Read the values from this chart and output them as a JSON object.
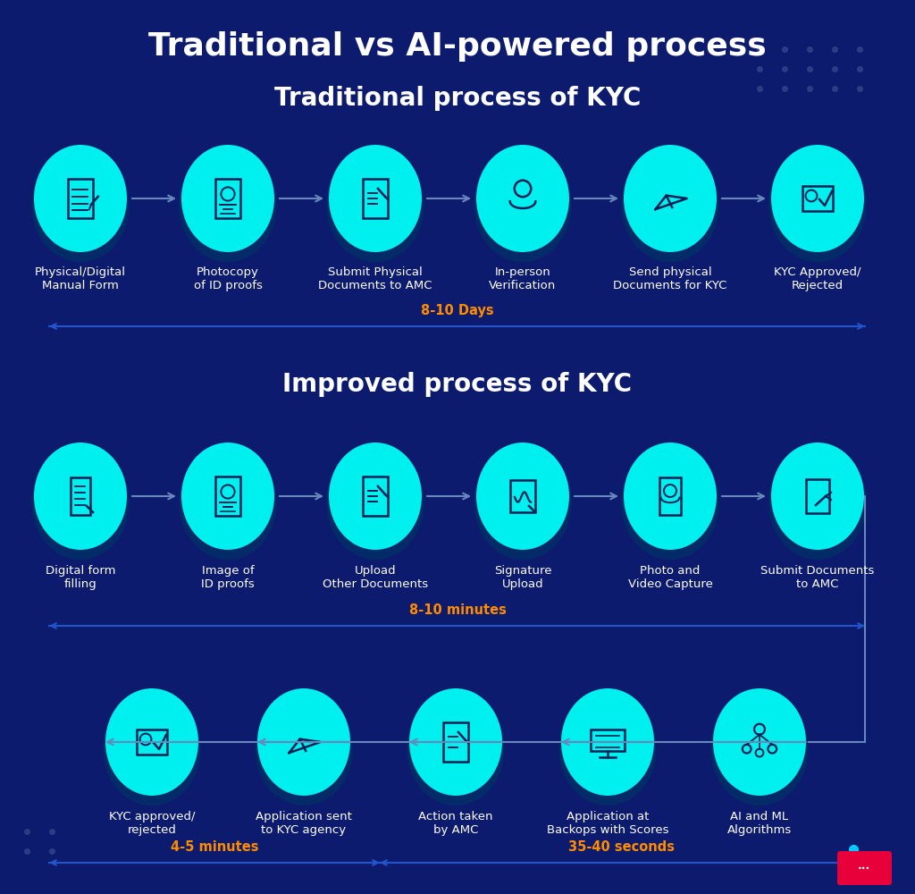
{
  "bg_color": "#0d1b6e",
  "title": "Traditional vs AI-powered process",
  "title_color": "#ffffff",
  "title_fontsize": 26,
  "section1_title": "Traditional process of KYC",
  "section2_title": "Improved process of KYC",
  "section_title_color": "#ffffff",
  "section_title_fontsize": 20,
  "circle_color": "#00f0f0",
  "circle_glow_color": "#007799",
  "arrow_color": "#6688bb",
  "label_color": "#ffffff",
  "label_fontsize": 9.5,
  "time_color": "#ff8c00",
  "time_line_color": "#2255cc",
  "dot_color": "#334488",
  "trad_steps": [
    "Physical/Digital\nManual Form",
    "Photocopy\nof ID proofs",
    "Submit Physical\nDocuments to AMC",
    "In-person\nVerification",
    "Send physical\nDocuments for KYC",
    "KYC Approved/\nRejected"
  ],
  "trad_time": "8-10 Days",
  "improved_row1_steps": [
    "Digital form\nfilling",
    "Image of\nID proofs",
    "Upload\nOther Documents",
    "Signature\nUpload",
    "Photo and\nVideo Capture",
    "Submit Documents\nto AMC"
  ],
  "improved_time1": "8-10 minutes",
  "improved_row2_steps": [
    "KYC approved/\nrejected",
    "Application sent\nto KYC agency",
    "Action taken\nby AMC",
    "Application at\nBackops with Scores",
    "AI and ML\nAlgorithms"
  ],
  "improved_time2_left": "4-5 minutes",
  "improved_time2_right": "35-40 seconds",
  "red_dot_color": "#e8003a",
  "cyan_dot_color": "#00ddff"
}
